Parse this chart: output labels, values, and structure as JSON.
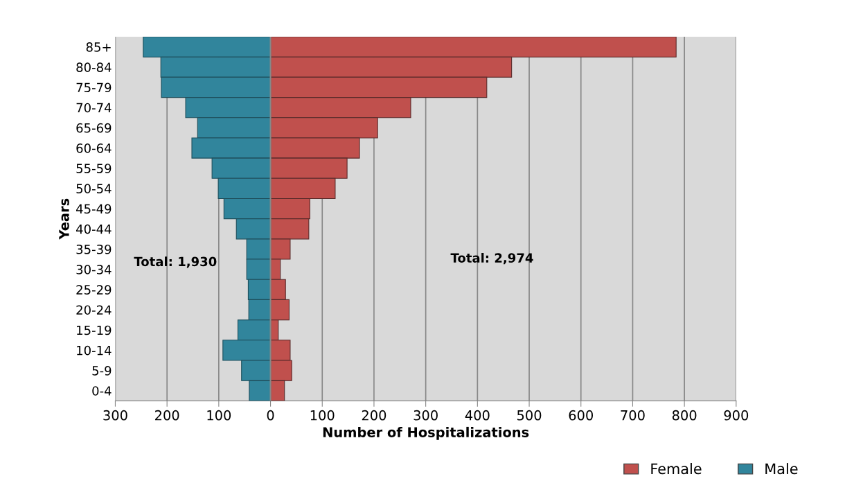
{
  "chart_data": {
    "type": "bar",
    "orientation": "horizontal",
    "stacked": true,
    "xlabel": "Number of Hospitalizations",
    "ylabel": "Years",
    "categories": [
      "85+",
      "80-84",
      "75-79",
      "70-74",
      "65-69",
      "60-64",
      "55-59",
      "50-54",
      "45-49",
      "40-44",
      "35-39",
      "30-34",
      "25-29",
      "20-24",
      "15-19",
      "10-14",
      "5-9",
      "0-4"
    ],
    "series": [
      {
        "name": "Female",
        "color": "#c0504d",
        "values": [
          784,
          466,
          418,
          271,
          207,
          172,
          148,
          125,
          76,
          74,
          38,
          19,
          29,
          36,
          15,
          38,
          41,
          27
        ]
      },
      {
        "name": "Male",
        "color": "#31859c",
        "values": [
          -246,
          -212,
          -211,
          -164,
          -141,
          -152,
          -113,
          -101,
          -90,
          -66,
          -46,
          -46,
          -43,
          -42,
          -63,
          -92,
          -56,
          -41
        ]
      }
    ],
    "xlim": [
      -300,
      900
    ],
    "xticks": [
      {
        "value": -300,
        "label": "300"
      },
      {
        "value": -200,
        "label": "200"
      },
      {
        "value": -100,
        "label": "100"
      },
      0,
      100,
      200,
      300,
      400,
      500,
      600,
      700,
      800,
      900
    ],
    "grid": "x",
    "legend": "bottom right",
    "annotations": [
      "Total: 1,930",
      "Total: 2,974"
    ]
  }
}
